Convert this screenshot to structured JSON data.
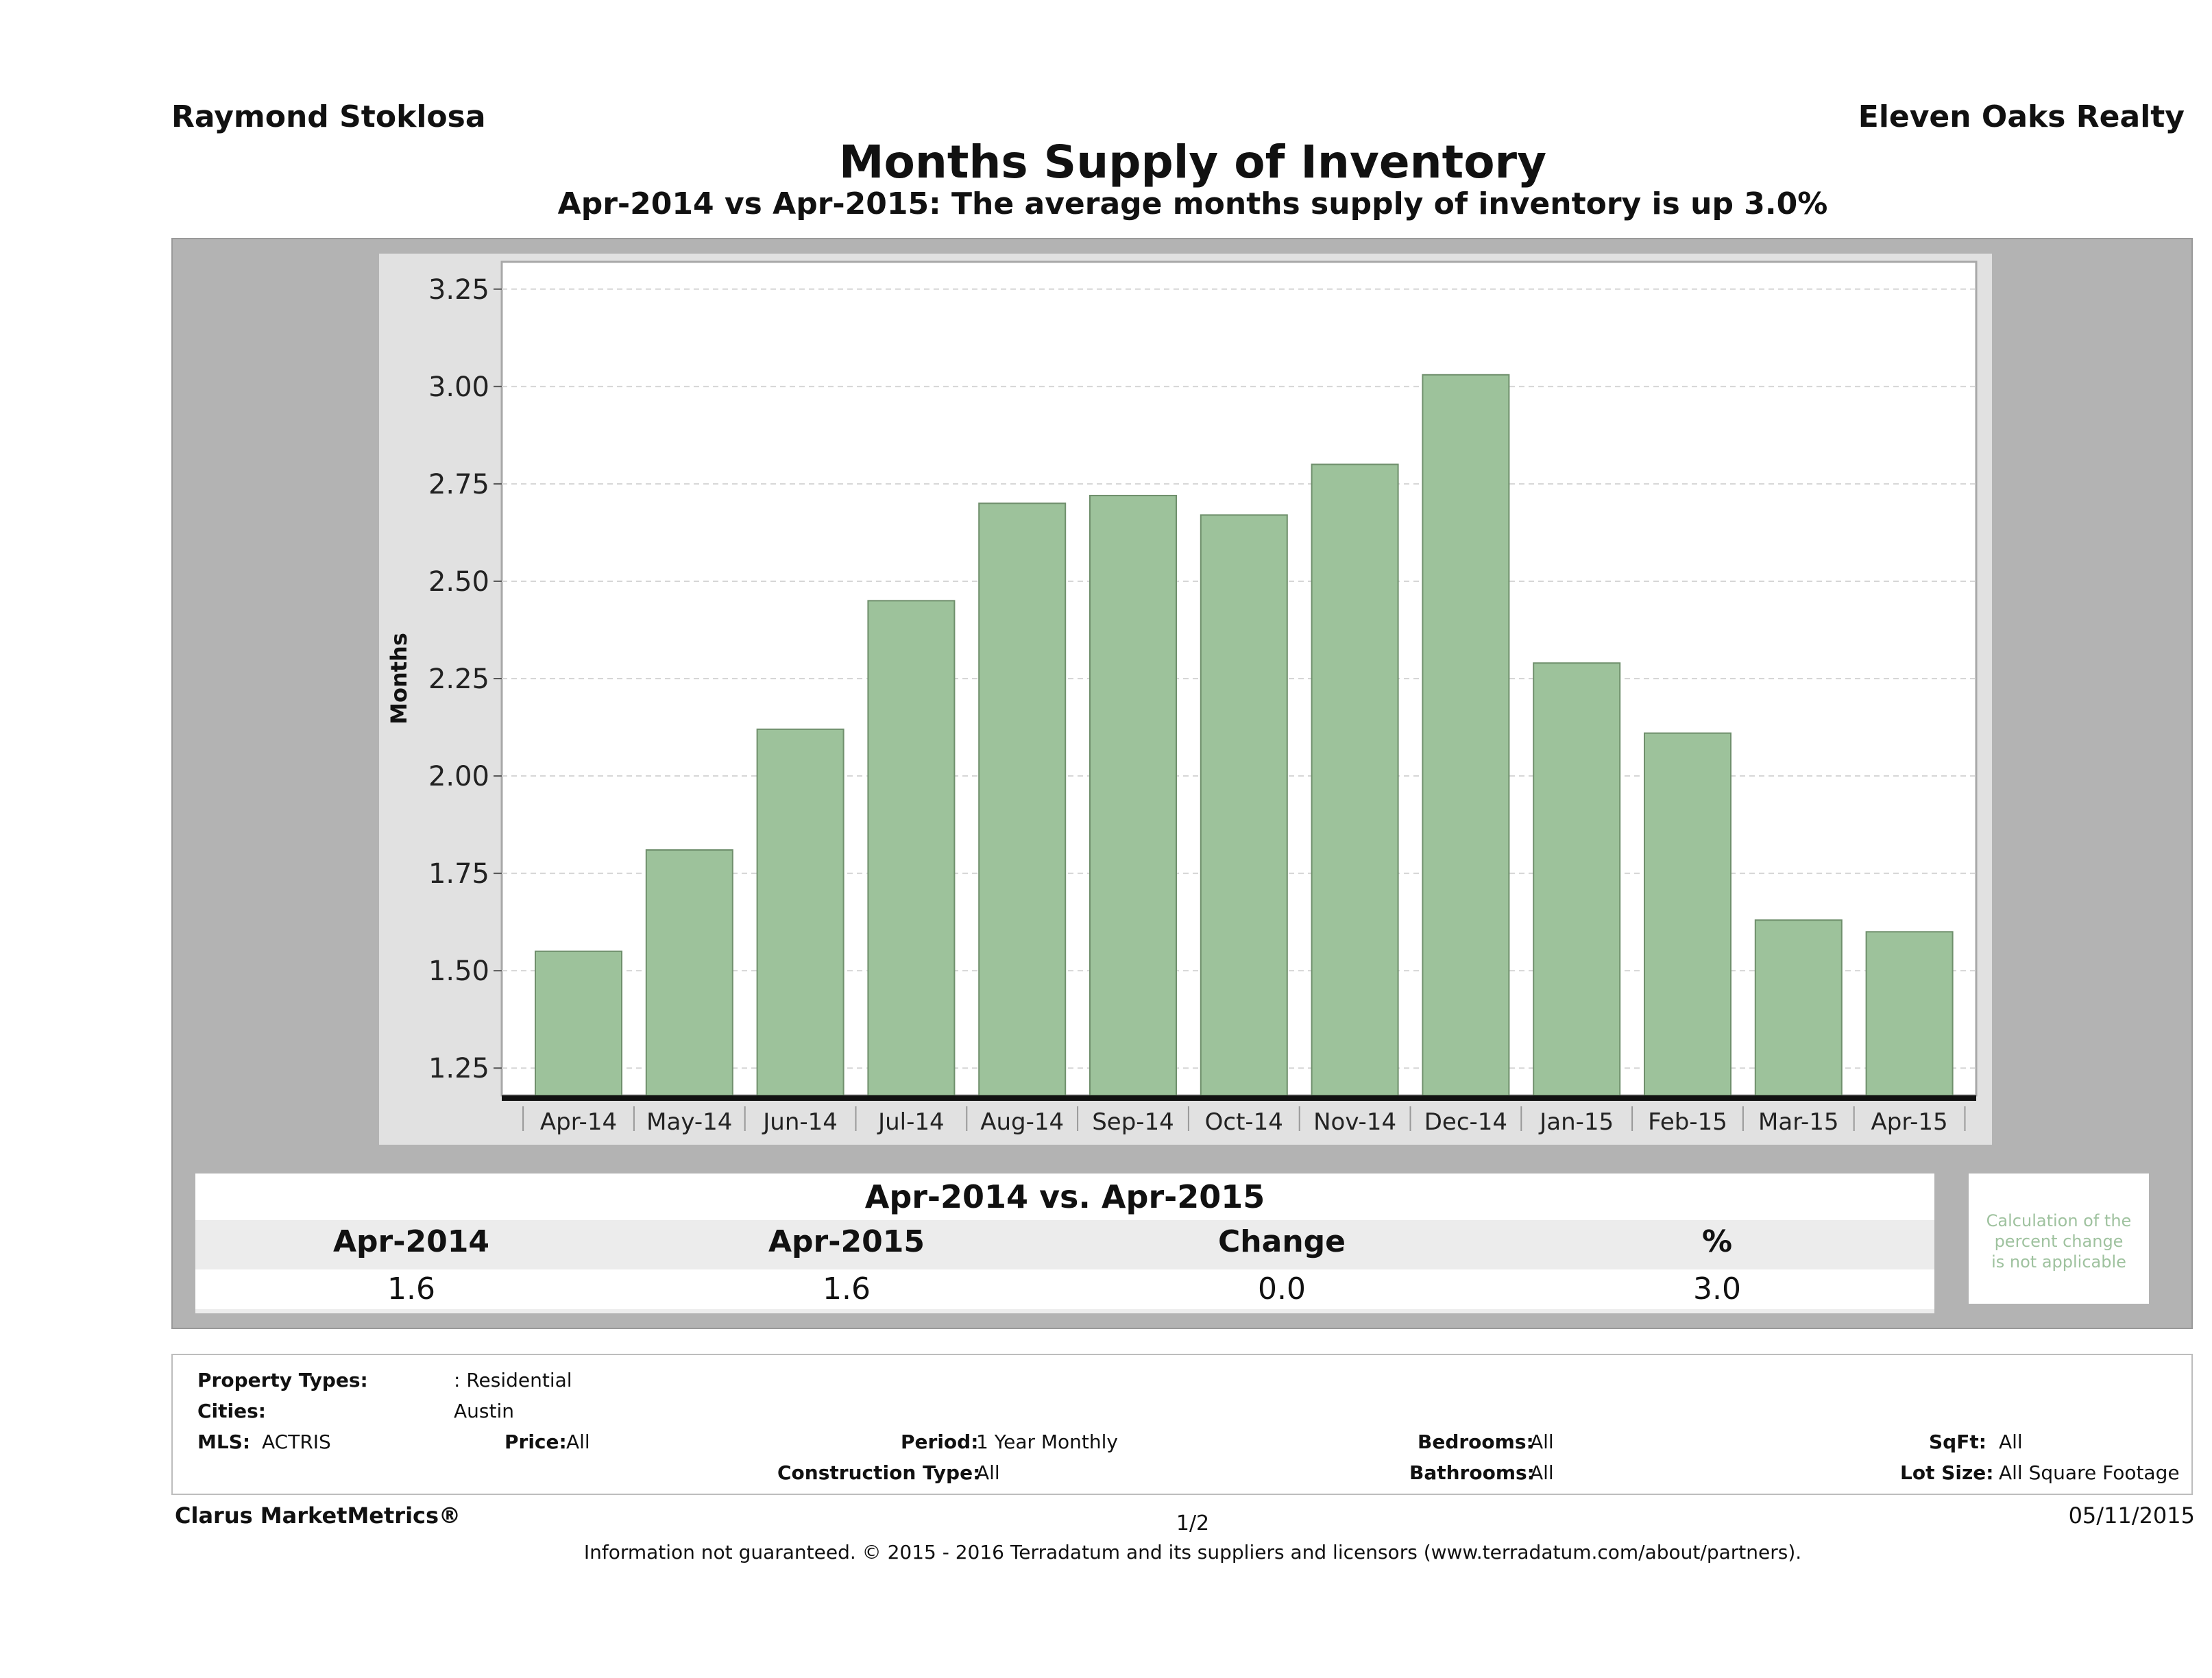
{
  "header": {
    "agent": "Raymond Stoklosa",
    "company": "Eleven Oaks Realty",
    "title": "Months Supply of Inventory",
    "subtitle": "Apr-2014 vs Apr-2015: The average months supply of inventory is up 3.0%"
  },
  "chart_data": {
    "type": "bar",
    "title": "Months Supply of Inventory",
    "subtitle": "Apr-2014 vs Apr-2015: The average months supply of inventory is up 3.0%",
    "ylabel": "Months",
    "xlabel": "",
    "categories": [
      "Apr-14",
      "May-14",
      "Jun-14",
      "Jul-14",
      "Aug-14",
      "Sep-14",
      "Oct-14",
      "Nov-14",
      "Dec-14",
      "Jan-15",
      "Feb-15",
      "Mar-15",
      "Apr-15"
    ],
    "values": [
      1.55,
      1.81,
      2.12,
      2.45,
      2.7,
      2.72,
      2.67,
      2.8,
      3.03,
      2.29,
      2.11,
      1.63,
      1.6
    ],
    "ylim": [
      1.18,
      3.32
    ],
    "yticks": [
      "1.25",
      "1.50",
      "1.75",
      "2.00",
      "2.25",
      "2.50",
      "2.75",
      "3.00",
      "3.25"
    ],
    "ytick_values": [
      1.25,
      1.5,
      1.75,
      2.0,
      2.25,
      2.5,
      2.75,
      3.0,
      3.25
    ],
    "grid": true,
    "bar_color": "#9dc29b",
    "bar_edge_color": "#6f8f6c"
  },
  "stats": {
    "heading": "Apr-2014 vs. Apr-2015",
    "labels": [
      "Apr-2014",
      "Apr-2015",
      "Change",
      "%"
    ],
    "values": [
      "1.6",
      "1.6",
      "0.0",
      "3.0"
    ],
    "note": [
      "Calculation of the",
      "percent change",
      "is not applicable"
    ]
  },
  "filters": {
    "property_types_label": "Property Types:",
    "property_types_value": ": Residential",
    "cities_label": "Cities:",
    "cities_value": "Austin",
    "mls_label": "MLS:",
    "mls_value": "ACTRIS",
    "price_label": "Price:",
    "price_value": "All",
    "period_label": "Period:",
    "period_value": "1 Year Monthly",
    "construction_label": "Construction Type:",
    "construction_value": "All",
    "bedrooms_label": "Bedrooms:",
    "bedrooms_value": "All",
    "bathrooms_label": "Bathrooms:",
    "bathrooms_value": "All",
    "sqft_label": "SqFt:",
    "sqft_value": "All",
    "lotsize_label": "Lot Size:",
    "lotsize_value": "All Square Footage"
  },
  "footer": {
    "brand": "Clarus MarketMetrics®",
    "page": "1/2",
    "date": "05/11/2015",
    "disclaimer": "Information not guaranteed. © 2015 - 2016 Terradatum and its suppliers and licensors (www.terradatum.com/about/partners)."
  }
}
